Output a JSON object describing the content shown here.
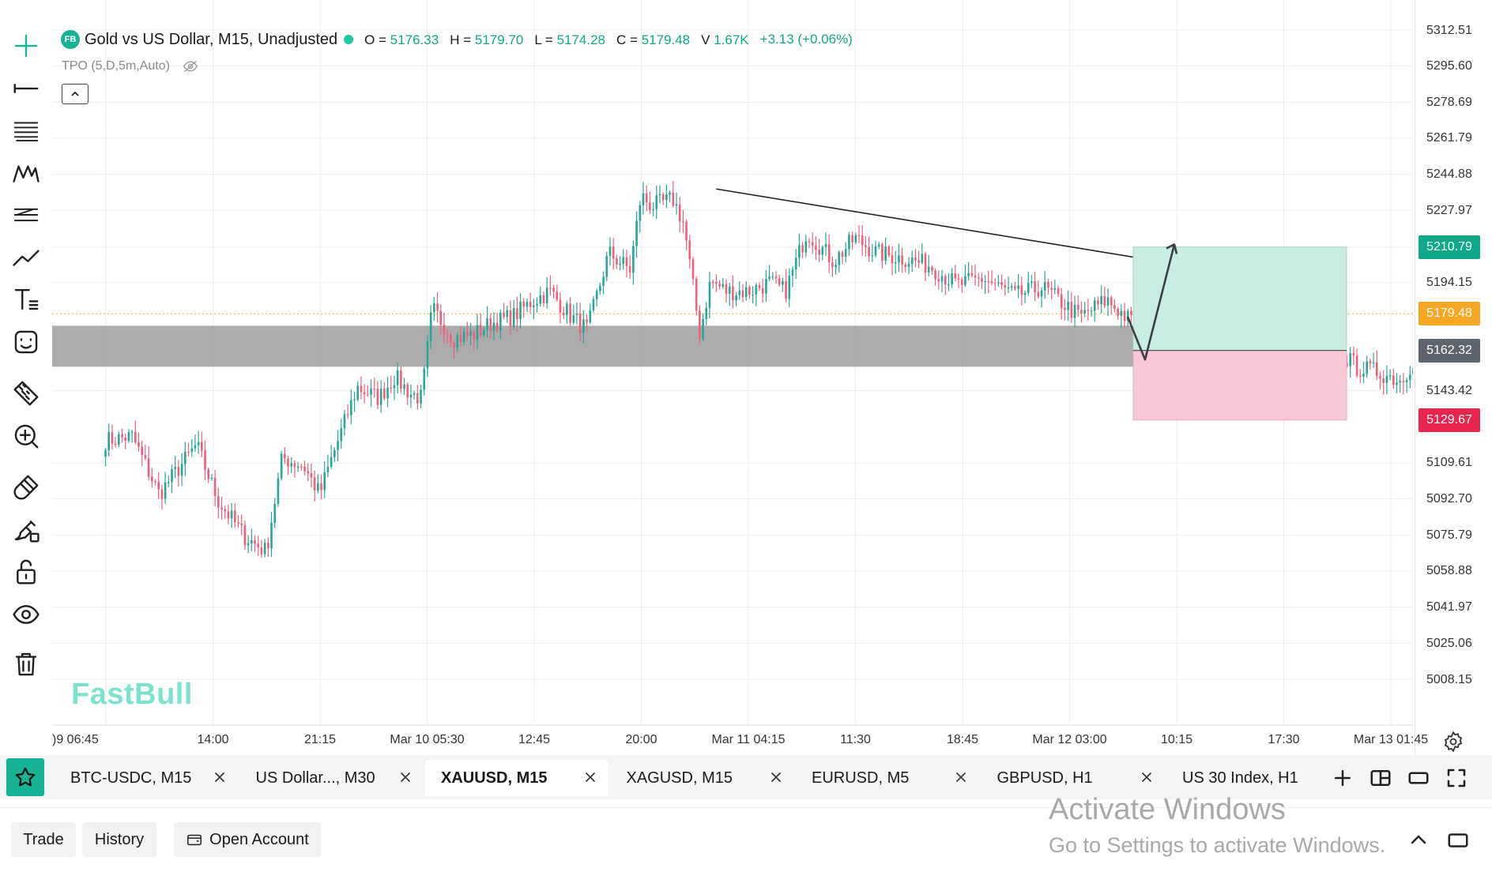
{
  "header": {
    "badge": "FB",
    "title": "Gold vs US Dollar, M15, Unadjusted",
    "ohlc": [
      {
        "key": "O =",
        "value": "5176.33"
      },
      {
        "key": "H =",
        "value": "5179.70"
      },
      {
        "key": "L =",
        "value": "5174.28"
      },
      {
        "key": "C =",
        "value": "5179.48"
      },
      {
        "key": "V",
        "value": "1.67K"
      }
    ],
    "change": "+3.13 (+0.06%)",
    "indicator": "TPO (5,D,5m,Auto)"
  },
  "watermark": "FastBull",
  "colors": {
    "up": "#26a69a",
    "down": "#ef5f7a",
    "accent": "#18b394",
    "zone": "#9e9e9e",
    "profit_fill": "#c9ece3",
    "loss_fill": "#f8c8d6",
    "tp_tag": "#0fa888",
    "current_tag": "#f5a623",
    "entry_tag": "#5d6470",
    "sl_tag": "#e7254e"
  },
  "price_axis": {
    "labels": [
      "5312.51",
      "5295.60",
      "5278.69",
      "5261.79",
      "5244.88",
      "5227.97",
      "5194.15",
      "5143.42",
      "5109.61",
      "5092.70",
      "5075.79",
      "5058.88",
      "5041.97",
      "5025.06",
      "5008.15"
    ],
    "tags": {
      "take_profit": "5210.79",
      "current": "5179.48",
      "entry": "5162.32",
      "stop_loss": "5129.67"
    }
  },
  "time_axis": {
    "labels": [
      ")9 06:45",
      "14:00",
      "21:15",
      "Mar 10 05:30",
      "12:45",
      "20:00",
      "Mar 11 04:15",
      "11:30",
      "18:45",
      "Mar 12 03:00",
      "10:15",
      "17:30",
      "Mar 13 01:45"
    ]
  },
  "toolbar": {
    "tools": [
      "crosshair-icon",
      "horizontal-line-icon",
      "fib-retracement-icon",
      "pattern-icon",
      "parallel-channel-icon",
      "trend-line-icon",
      "text-tool-icon",
      "emoji-icon",
      "ruler-icon",
      "zoom-in-icon",
      "magnet-icon",
      "lock-drawing-icon",
      "unlock-icon",
      "eye-icon",
      "trash-icon"
    ]
  },
  "tabs": [
    {
      "label": "BTC-USDC, M15",
      "active": false
    },
    {
      "label": "US Dollar..., M30",
      "active": false
    },
    {
      "label": "XAUUSD, M15",
      "active": true
    },
    {
      "label": "XAGUSD, M15",
      "active": false
    },
    {
      "label": "EURUSD, M5",
      "active": false
    },
    {
      "label": "GBPUSD, H1",
      "active": false
    },
    {
      "label": "US 30 Index, H1",
      "active": false
    }
  ],
  "bottom": {
    "trade": "Trade",
    "history": "History",
    "open_account": "Open Account"
  },
  "activate_windows": {
    "title": "Activate Windows",
    "subtitle": "Go to Settings to activate Windows."
  },
  "chart_data": {
    "type": "candlestick",
    "symbol": "XAUUSD",
    "timeframe": "M15",
    "ylim": [
      5000,
      5320
    ],
    "entry": 5162.32,
    "take_profit": 5210.79,
    "stop_loss": 5129.67,
    "current": 5179.48,
    "support_zone": [
      5158,
      5175
    ],
    "trend_line": {
      "from": [
        5.7,
        5238
      ],
      "to": [
        10.7,
        5197
      ]
    },
    "anchors": [
      [
        0.0,
        5120
      ],
      [
        0.25,
        5122
      ],
      [
        0.5,
        5095
      ],
      [
        0.85,
        5118
      ],
      [
        1.05,
        5092
      ],
      [
        1.3,
        5075
      ],
      [
        1.5,
        5068
      ],
      [
        1.65,
        5112
      ],
      [
        1.85,
        5108
      ],
      [
        2.0,
        5095
      ],
      [
        2.1,
        5110
      ],
      [
        2.35,
        5145
      ],
      [
        2.55,
        5140
      ],
      [
        2.7,
        5150
      ],
      [
        2.85,
        5142
      ],
      [
        2.95,
        5140
      ],
      [
        3.0,
        5160
      ],
      [
        3.05,
        5182
      ],
      [
        3.25,
        5168
      ],
      [
        3.45,
        5170
      ],
      [
        3.6,
        5175
      ],
      [
        3.8,
        5178
      ],
      [
        4.0,
        5186
      ],
      [
        4.15,
        5190
      ],
      [
        4.35,
        5178
      ],
      [
        4.5,
        5172
      ],
      [
        4.6,
        5190
      ],
      [
        4.7,
        5208
      ],
      [
        4.9,
        5200
      ],
      [
        5.0,
        5235
      ],
      [
        5.1,
        5230
      ],
      [
        5.3,
        5233
      ],
      [
        5.4,
        5222
      ],
      [
        5.55,
        5170
      ],
      [
        5.65,
        5195
      ],
      [
        5.8,
        5190
      ],
      [
        6.0,
        5190
      ],
      [
        6.2,
        5194
      ],
      [
        6.35,
        5190
      ],
      [
        6.55,
        5218
      ],
      [
        6.8,
        5204
      ],
      [
        7.0,
        5215
      ],
      [
        7.2,
        5208
      ],
      [
        7.5,
        5205
      ],
      [
        7.7,
        5202
      ],
      [
        7.95,
        5193
      ],
      [
        8.2,
        5196
      ],
      [
        8.5,
        5188
      ],
      [
        8.75,
        5192
      ],
      [
        9.1,
        5178
      ],
      [
        9.35,
        5186
      ],
      [
        9.6,
        5175
      ],
      [
        9.9,
        5170
      ],
      [
        10.2,
        5172
      ],
      [
        10.55,
        5176
      ],
      [
        10.75,
        5174
      ],
      [
        10.95,
        5162
      ],
      [
        11.05,
        5142
      ],
      [
        11.25,
        5150
      ],
      [
        11.45,
        5165
      ],
      [
        11.6,
        5158
      ],
      [
        11.7,
        5154
      ],
      [
        11.9,
        5152
      ],
      [
        12.1,
        5148
      ],
      [
        12.3,
        5165
      ],
      [
        12.45,
        5180
      ],
      [
        12.55,
        5184
      ],
      [
        12.7,
        5179.48
      ]
    ]
  }
}
